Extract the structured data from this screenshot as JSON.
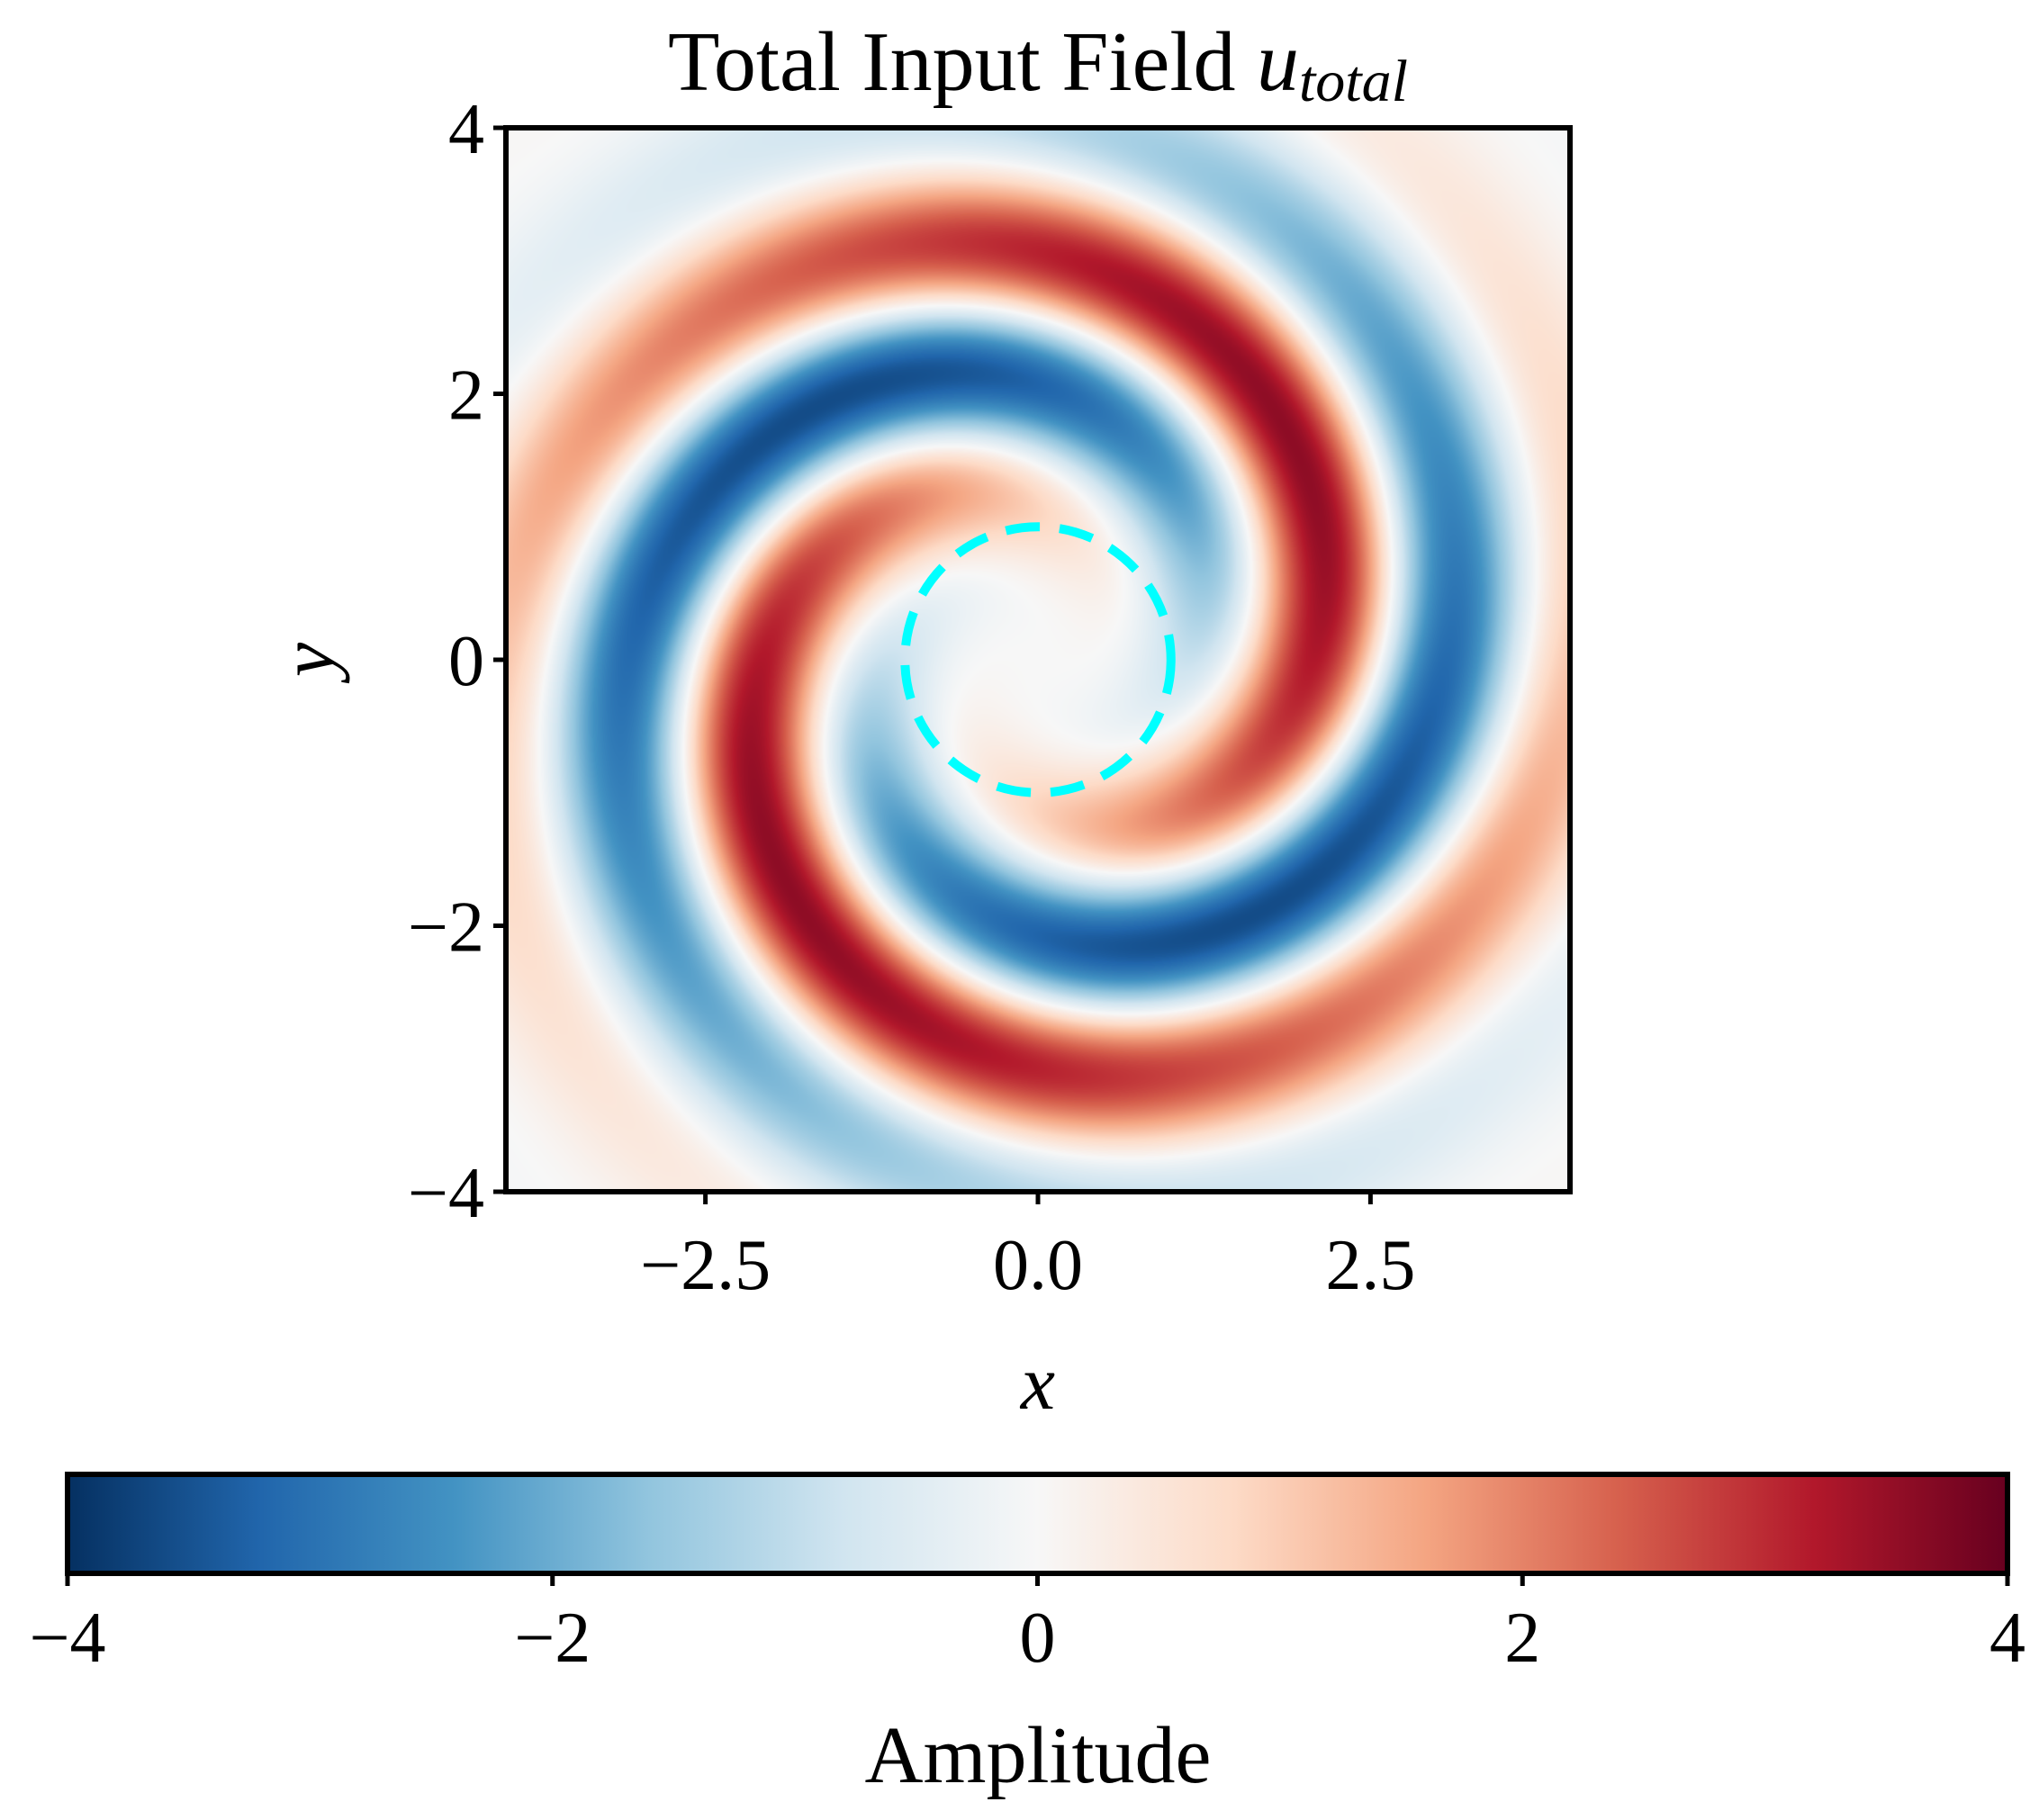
{
  "chart_data": {
    "type": "heatmap",
    "title": "Total Input Field ",
    "title_math": {
      "symbol": "u",
      "subscript": "total"
    },
    "xlabel": "x",
    "ylabel": "y",
    "xlim": [
      -4,
      4
    ],
    "ylim": [
      -4,
      4
    ],
    "x_ticks": [
      -2.5,
      0.0,
      2.5
    ],
    "x_tick_labels": [
      "−2.5",
      "0.0",
      "2.5"
    ],
    "y_ticks": [
      -4,
      -2,
      0,
      2,
      4
    ],
    "y_tick_labels": [
      "−4",
      "−2",
      "0",
      "2",
      "4"
    ],
    "colormap": "RdBu_r",
    "colorbar": {
      "label": "Amplitude",
      "range": [
        -4,
        4
      ],
      "ticks": [
        -4,
        -2,
        0,
        2,
        4
      ],
      "tick_labels": [
        "−4",
        "−2",
        "0",
        "2",
        "4"
      ],
      "orientation": "horizontal",
      "colors": [
        "#053061",
        "#2166ac",
        "#4393c3",
        "#92c5de",
        "#d1e5f0",
        "#f7f7f7",
        "#fddbc7",
        "#f4a582",
        "#d6604d",
        "#b2182b",
        "#67001f"
      ]
    },
    "field": {
      "description_free": true,
      "spiral_arms": 2,
      "peak_amplitude": 3.6,
      "radial_wavenumber": 2.35,
      "envelope_radius": 2.5
    },
    "annotations": [
      {
        "shape": "circle",
        "center": [
          0,
          0
        ],
        "radius": 1.0,
        "style": "dashed",
        "color": "#00ffff"
      }
    ]
  }
}
